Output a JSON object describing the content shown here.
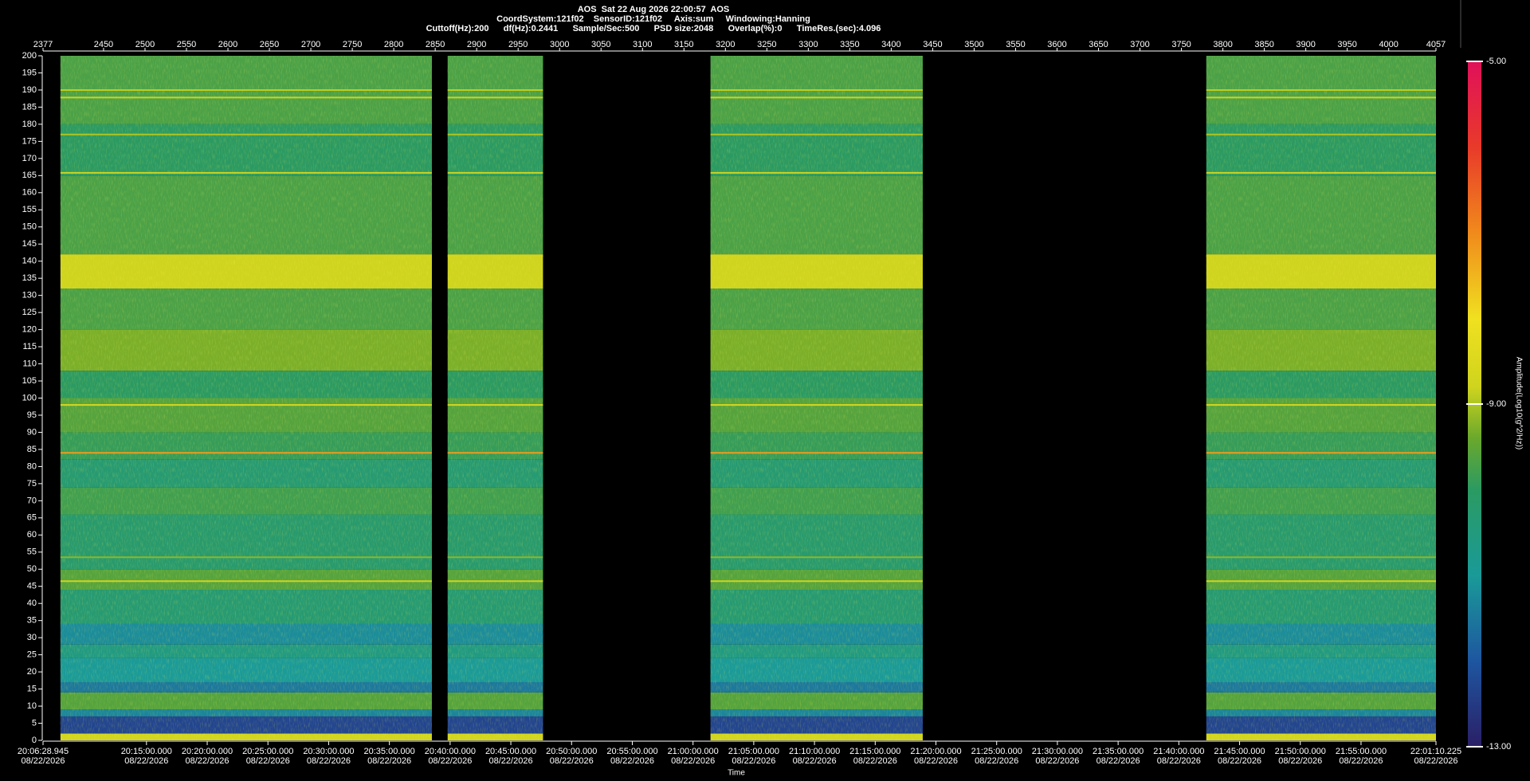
{
  "chart_data": {
    "type": "spectrogram",
    "title": "AOS  Sat 22 Aug 2026 22:00:57  AOS",
    "subtitle": "CoordSystem:121f02    SensorID:121f02     Axis:sum     Windowing:Hanning",
    "parameters": "Cuttoff(Hz):200      df(Hz):0.2441      Sample/Sec:500      PSD size:2048      Overlap(%):0      TimeRes.(sec):4.096",
    "xlabel": "Time",
    "colorbar_label": "Amplitude(Log10(g^2/Hz))",
    "xlim": [
      2377,
      4057
    ],
    "xticks": [
      2377,
      2450,
      2500,
      2550,
      2600,
      2650,
      2700,
      2750,
      2800,
      2850,
      2900,
      2950,
      3000,
      3050,
      3100,
      3150,
      3200,
      3250,
      3300,
      3350,
      3400,
      3450,
      3500,
      3550,
      3600,
      3650,
      3700,
      3750,
      3800,
      3850,
      3900,
      3950,
      4000,
      4057
    ],
    "ylim": [
      0,
      200
    ],
    "yticks": [
      0,
      5,
      10,
      15,
      20,
      25,
      30,
      35,
      40,
      45,
      50,
      55,
      60,
      65,
      70,
      75,
      80,
      85,
      90,
      95,
      100,
      105,
      110,
      115,
      120,
      125,
      130,
      135,
      140,
      145,
      150,
      155,
      160,
      165,
      170,
      175,
      180,
      185,
      190,
      195,
      200
    ],
    "time_ticks": [
      {
        "time": "20:06:28.945",
        "date": "08/22/2026"
      },
      {
        "time": "20:15:00.000",
        "date": "08/22/2026"
      },
      {
        "time": "20:20:00.000",
        "date": "08/22/2026"
      },
      {
        "time": "20:25:00.000",
        "date": "08/22/2026"
      },
      {
        "time": "20:30:00.000",
        "date": "08/22/2026"
      },
      {
        "time": "20:35:00.000",
        "date": "08/22/2026"
      },
      {
        "time": "20:40:00.000",
        "date": "08/22/2026"
      },
      {
        "time": "20:45:00.000",
        "date": "08/22/2026"
      },
      {
        "time": "20:50:00.000",
        "date": "08/22/2026"
      },
      {
        "time": "20:55:00.000",
        "date": "08/22/2026"
      },
      {
        "time": "21:00:00.000",
        "date": "08/22/2026"
      },
      {
        "time": "21:05:00.000",
        "date": "08/22/2026"
      },
      {
        "time": "21:10:00.000",
        "date": "08/22/2026"
      },
      {
        "time": "21:15:00.000",
        "date": "08/22/2026"
      },
      {
        "time": "21:20:00.000",
        "date": "08/22/2026"
      },
      {
        "time": "21:25:00.000",
        "date": "08/22/2026"
      },
      {
        "time": "21:30:00.000",
        "date": "08/22/2026"
      },
      {
        "time": "21:35:00.000",
        "date": "08/22/2026"
      },
      {
        "time": "21:40:00.000",
        "date": "08/22/2026"
      },
      {
        "time": "21:45:00.000",
        "date": "08/22/2026"
      },
      {
        "time": "21:50:00.000",
        "date": "08/22/2026"
      },
      {
        "time": "21:55:00.000",
        "date": "08/22/2026"
      },
      {
        "time": "22:01:10.225",
        "date": "08/22/2026"
      }
    ],
    "segments": [
      [
        2398,
        2846
      ],
      [
        2865,
        2980
      ],
      [
        3182,
        3438
      ],
      [
        3780,
        4057
      ]
    ],
    "bands": [
      {
        "from": 0,
        "to": 2,
        "amplitude": -8.7
      },
      {
        "from": 2,
        "to": 7,
        "amplitude": -12.3
      },
      {
        "from": 7,
        "to": 9,
        "amplitude": -11.3
      },
      {
        "from": 9,
        "to": 14,
        "amplitude": -9.6
      },
      {
        "from": 14,
        "to": 17,
        "amplitude": -11.5
      },
      {
        "from": 17,
        "to": 24,
        "amplitude": -11.0
      },
      {
        "from": 24,
        "to": 28,
        "amplitude": -10.6
      },
      {
        "from": 28,
        "to": 34,
        "amplitude": -11.2
      },
      {
        "from": 34,
        "to": 44,
        "amplitude": -10.3
      },
      {
        "from": 44,
        "to": 50,
        "amplitude": -9.6
      },
      {
        "from": 50,
        "to": 66,
        "amplitude": -10.2
      },
      {
        "from": 66,
        "to": 74,
        "amplitude": -9.8
      },
      {
        "from": 74,
        "to": 82,
        "amplitude": -10.3
      },
      {
        "from": 82,
        "to": 90,
        "amplitude": -9.9
      },
      {
        "from": 90,
        "to": 100,
        "amplitude": -9.6
      },
      {
        "from": 100,
        "to": 108,
        "amplitude": -10.0
      },
      {
        "from": 108,
        "to": 120,
        "amplitude": -9.3
      },
      {
        "from": 120,
        "to": 132,
        "amplitude": -9.7
      },
      {
        "from": 132,
        "to": 142,
        "amplitude": -8.8
      },
      {
        "from": 142,
        "to": 165,
        "amplitude": -9.7
      },
      {
        "from": 165,
        "to": 180,
        "amplitude": -10.0
      },
      {
        "from": 180,
        "to": 200,
        "amplitude": -9.7
      }
    ],
    "lines": [
      {
        "freq": 46.5,
        "amplitude": -8.8
      },
      {
        "freq": 53.5,
        "amplitude": -9.2
      },
      {
        "freq": 84,
        "amplitude": -7.2
      },
      {
        "freq": 98,
        "amplitude": -8.6
      },
      {
        "freq": 141.5,
        "amplitude": -8.7
      },
      {
        "freq": 165.8,
        "amplitude": -8.8
      },
      {
        "freq": 177,
        "amplitude": -9.0
      },
      {
        "freq": 187.8,
        "amplitude": -8.8
      },
      {
        "freq": 190,
        "amplitude": -8.9
      }
    ],
    "clim": [
      -13,
      -5
    ],
    "cticks": [
      {
        "value": -5,
        "label": "-5.00"
      },
      {
        "value": -9,
        "label": "-9.00"
      },
      {
        "value": -13,
        "label": "-13.00"
      }
    ],
    "colormap": [
      {
        "value": -13,
        "color": "#2a1f66"
      },
      {
        "value": -12,
        "color": "#1e56a0"
      },
      {
        "value": -11,
        "color": "#1a9a98"
      },
      {
        "value": -10,
        "color": "#2b9a62"
      },
      {
        "value": -9.4,
        "color": "#6aa82c"
      },
      {
        "value": -8.8,
        "color": "#cfd41e"
      },
      {
        "value": -8,
        "color": "#f0e020"
      },
      {
        "value": -7,
        "color": "#f08a1c"
      },
      {
        "value": -6,
        "color": "#e83a2a"
      },
      {
        "value": -5,
        "color": "#e0105a"
      }
    ]
  }
}
